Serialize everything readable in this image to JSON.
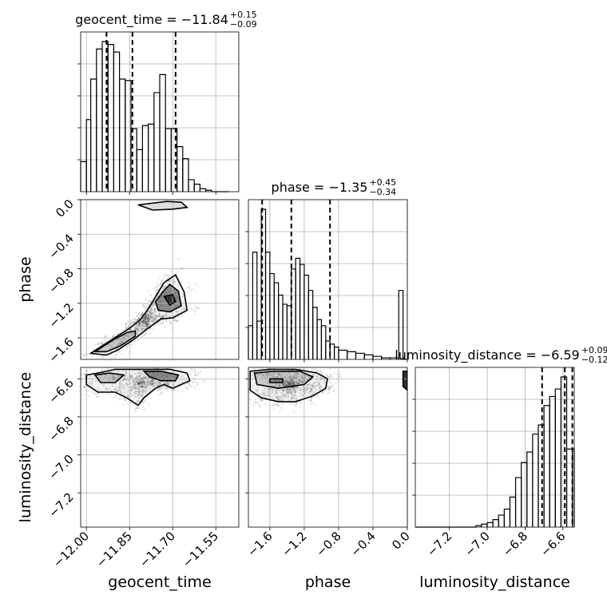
{
  "chart_data": {
    "type": "corner",
    "parameters": [
      "geocent_time",
      "phase",
      "luminosity_distance"
    ],
    "titles": [
      {
        "param": "geocent_time",
        "text": "geocent_time = −11.84",
        "plus": "+0.15",
        "minus": "−0.09"
      },
      {
        "param": "phase",
        "text": "phase = −1.35",
        "plus": "+0.45",
        "minus": "−0.34"
      },
      {
        "param": "luminosity_distance",
        "text": "luminosity_distance = −6.59",
        "plus": "+0.09",
        "minus": "−0.12"
      }
    ],
    "ranges": {
      "geocent_time": [
        -12.02,
        -11.47
      ],
      "phase": [
        -1.85,
        0.0
      ],
      "luminosity_distance": [
        -7.38,
        -6.54
      ]
    },
    "ticks": {
      "geocent_time": {
        "values": [
          -12.0,
          -11.85,
          -11.7,
          -11.55
        ],
        "labels": [
          "−12.00",
          "−11.85",
          "−11.70",
          "−11.55"
        ]
      },
      "phase": {
        "values": [
          -1.6,
          -1.2,
          -0.8,
          -0.4,
          0.0
        ],
        "labels": [
          "−1.6",
          "−1.2",
          "−0.8",
          "−0.4",
          "0.0"
        ]
      },
      "luminosity_distance": {
        "values": [
          -7.2,
          -7.0,
          -6.8,
          -6.6
        ],
        "labels": [
          "−7.2",
          "−7.0",
          "−6.8",
          "−6.6"
        ]
      }
    },
    "quantiles": {
      "geocent_time": [
        -11.93,
        -11.84,
        -11.69
      ],
      "phase": [
        -1.69,
        -1.35,
        -0.9
      ],
      "luminosity_distance": [
        -6.71,
        -6.59,
        -6.55
      ]
    },
    "histograms": {
      "geocent_time": {
        "edges": [
          -12.02,
          -12.0,
          -11.985,
          -11.965,
          -11.945,
          -11.925,
          -11.905,
          -11.885,
          -11.865,
          -11.845,
          -11.825,
          -11.805,
          -11.785,
          -11.765,
          -11.745,
          -11.725,
          -11.705,
          -11.685,
          -11.665,
          -11.645,
          -11.625,
          -11.605,
          -11.585,
          -11.565,
          -11.545,
          -11.525,
          -11.505
        ],
        "counts": [
          0.2,
          0.48,
          0.75,
          0.95,
          1.0,
          0.98,
          0.93,
          0.75,
          0.74,
          0.42,
          0.28,
          0.44,
          0.45,
          0.66,
          0.78,
          0.42,
          0.42,
          0.3,
          0.22,
          0.08,
          0.05,
          0.02,
          0.01,
          0.0,
          0.0,
          0.0
        ]
      },
      "phase": {
        "edges": [
          -1.85,
          -1.8,
          -1.75,
          -1.7,
          -1.65,
          -1.6,
          -1.55,
          -1.5,
          -1.45,
          -1.4,
          -1.35,
          -1.3,
          -1.25,
          -1.2,
          -1.15,
          -1.1,
          -1.05,
          -1.0,
          -0.95,
          -0.9,
          -0.85,
          -0.8,
          -0.7,
          -0.6,
          -0.5,
          -0.4,
          -0.3,
          -0.2,
          -0.1,
          -0.05,
          0.0
        ],
        "counts": [
          0.22,
          0.7,
          0.25,
          0.98,
          0.7,
          0.56,
          0.5,
          0.42,
          0.36,
          0.35,
          0.59,
          0.66,
          0.62,
          0.55,
          0.45,
          0.34,
          0.26,
          0.22,
          0.12,
          0.1,
          0.08,
          0.06,
          0.05,
          0.04,
          0.03,
          0.02,
          0.01,
          0.01,
          0.45,
          0.0
        ]
      },
      "luminosity_distance": {
        "edges": [
          -7.38,
          -7.06,
          -7.03,
          -7.0,
          -6.97,
          -6.94,
          -6.91,
          -6.88,
          -6.85,
          -6.82,
          -6.79,
          -6.76,
          -6.73,
          -6.7,
          -6.67,
          -6.64,
          -6.61,
          -6.58,
          -6.55,
          -6.54
        ],
        "counts": [
          0.0,
          0.01,
          0.02,
          0.03,
          0.05,
          0.08,
          0.12,
          0.2,
          0.33,
          0.43,
          0.5,
          0.62,
          0.68,
          0.81,
          0.87,
          0.92,
          1.0,
          0.52,
          0.52
        ]
      }
    },
    "contours_2d": [
      {
        "x": "geocent_time",
        "y": "phase",
        "levels": [
          [
            [
              -11.985,
              -1.78
            ],
            [
              -11.93,
              -1.66
            ],
            [
              -11.85,
              -1.49
            ],
            [
              -11.81,
              -1.38
            ],
            [
              -11.78,
              -1.24
            ],
            [
              -11.75,
              -1.07
            ],
            [
              -11.73,
              -0.96
            ],
            [
              -11.69,
              -0.87
            ],
            [
              -11.66,
              -1.07
            ],
            [
              -11.65,
              -1.28
            ],
            [
              -11.7,
              -1.37
            ],
            [
              -11.74,
              -1.38
            ],
            [
              -11.79,
              -1.5
            ],
            [
              -11.84,
              -1.63
            ],
            [
              -11.89,
              -1.74
            ],
            [
              -11.93,
              -1.8
            ]
          ],
          [
            [
              -11.97,
              -1.76
            ],
            [
              -11.91,
              -1.63
            ],
            [
              -11.86,
              -1.54
            ],
            [
              -11.83,
              -1.52
            ],
            [
              -11.83,
              -1.58
            ],
            [
              -11.88,
              -1.69
            ],
            [
              -11.93,
              -1.76
            ]
          ],
          [
            [
              -11.76,
              -1.18
            ],
            [
              -11.73,
              -1.05
            ],
            [
              -11.71,
              -0.98
            ],
            [
              -11.68,
              -1.06
            ],
            [
              -11.67,
              -1.23
            ],
            [
              -11.71,
              -1.3
            ],
            [
              -11.75,
              -1.28
            ]
          ],
          [
            [
              -11.73,
              -1.12
            ],
            [
              -11.7,
              -1.1
            ],
            [
              -11.69,
              -1.18
            ],
            [
              -11.71,
              -1.22
            ]
          ],
          [
            [
              -11.82,
              -0.06
            ],
            [
              -11.72,
              -0.02
            ],
            [
              -11.67,
              -0.03
            ],
            [
              -11.65,
              -0.09
            ],
            [
              -11.7,
              -0.11
            ],
            [
              -11.77,
              -0.12
            ]
          ]
        ]
      },
      {
        "x": "geocent_time",
        "y": "luminosity_distance",
        "levels": [
          [
            [
              -12.0,
              -6.58
            ],
            [
              -11.96,
              -6.57
            ],
            [
              -11.9,
              -6.55
            ],
            [
              -11.82,
              -6.55
            ],
            [
              -11.76,
              -6.55
            ],
            [
              -11.71,
              -6.55
            ],
            [
              -11.65,
              -6.57
            ],
            [
              -11.64,
              -6.61
            ],
            [
              -11.67,
              -6.63
            ],
            [
              -11.7,
              -6.65
            ],
            [
              -11.73,
              -6.63
            ],
            [
              -11.76,
              -6.65
            ],
            [
              -11.8,
              -6.7
            ],
            [
              -11.82,
              -6.74
            ],
            [
              -11.86,
              -6.7
            ],
            [
              -11.9,
              -6.67
            ],
            [
              -11.96,
              -6.67
            ],
            [
              -12.0,
              -6.63
            ]
          ],
          [
            [
              -11.97,
              -6.58
            ],
            [
              -11.92,
              -6.57
            ],
            [
              -11.87,
              -6.58
            ],
            [
              -11.9,
              -6.62
            ],
            [
              -11.95,
              -6.62
            ]
          ],
          [
            [
              -11.8,
              -6.56
            ],
            [
              -11.74,
              -6.56
            ],
            [
              -11.68,
              -6.58
            ],
            [
              -11.69,
              -6.61
            ],
            [
              -11.74,
              -6.61
            ],
            [
              -11.78,
              -6.59
            ]
          ]
        ]
      },
      {
        "x": "phase",
        "y": "luminosity_distance",
        "levels": [
          [
            [
              -1.83,
              -6.56
            ],
            [
              -1.6,
              -6.55
            ],
            [
              -1.3,
              -6.55
            ],
            [
              -1.05,
              -6.57
            ],
            [
              -0.93,
              -6.6
            ],
            [
              -0.95,
              -6.65
            ],
            [
              -1.1,
              -6.69
            ],
            [
              -1.3,
              -6.72
            ],
            [
              -1.5,
              -6.72
            ],
            [
              -1.7,
              -6.7
            ],
            [
              -1.83,
              -6.66
            ]
          ],
          [
            [
              -1.78,
              -6.57
            ],
            [
              -1.55,
              -6.56
            ],
            [
              -1.25,
              -6.56
            ],
            [
              -1.1,
              -6.59
            ],
            [
              -1.2,
              -6.63
            ],
            [
              -1.5,
              -6.65
            ],
            [
              -1.75,
              -6.63
            ]
          ],
          [
            [
              -1.6,
              -6.6
            ],
            [
              -1.45,
              -6.6
            ],
            [
              -1.45,
              -6.62
            ],
            [
              -1.6,
              -6.62
            ]
          ],
          [
            [
              -0.05,
              -6.56
            ],
            [
              0.0,
              -6.56
            ],
            [
              0.0,
              -6.66
            ],
            [
              -0.05,
              -6.64
            ]
          ]
        ]
      }
    ]
  }
}
